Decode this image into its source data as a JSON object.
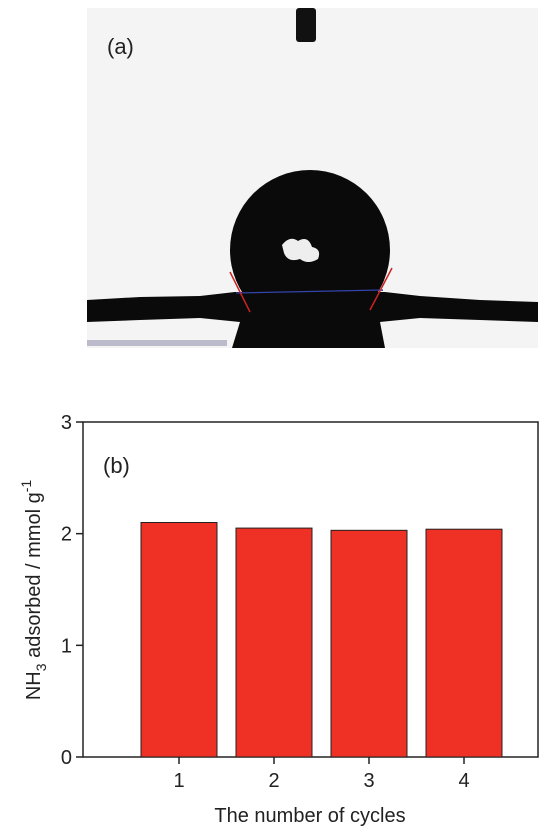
{
  "image_panel": {
    "label": "(a)"
  },
  "chart_data": {
    "type": "bar",
    "annotation": "(b)",
    "categories": [
      "1",
      "2",
      "3",
      "4"
    ],
    "values": [
      2.1,
      2.05,
      2.03,
      2.04
    ],
    "color": "#ee3124",
    "ylim": [
      0,
      3
    ],
    "yticks": [
      0,
      1,
      2,
      3
    ],
    "xlabel": "The number of cycles",
    "ylabel": [
      "NH",
      "3",
      " adsorbed / mmol g",
      "-1"
    ]
  }
}
